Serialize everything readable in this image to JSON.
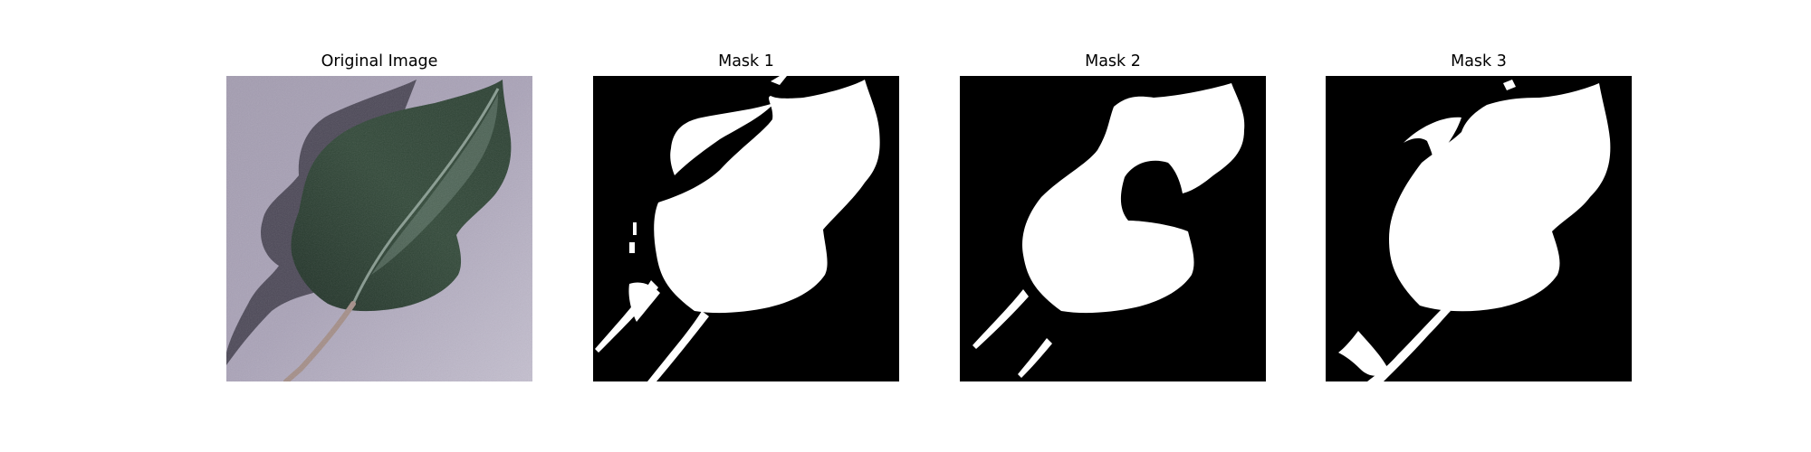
{
  "figure": {
    "panels": [
      {
        "id": "original",
        "title": "Original Image",
        "kind": "photo",
        "icon": "leaf-photo"
      },
      {
        "id": "mask1",
        "title": "Mask 1",
        "kind": "mask",
        "icon": "leaf-mask"
      },
      {
        "id": "mask2",
        "title": "Mask 2",
        "kind": "mask",
        "icon": "leaf-mask"
      },
      {
        "id": "mask3",
        "title": "Mask 3",
        "kind": "mask",
        "icon": "leaf-mask"
      }
    ],
    "colors": {
      "page_background": "#ffffff",
      "photo_background": "#aaa3b8",
      "leaf_dark": "#26392c",
      "leaf_light": "#7a9486",
      "leaf_shadow": "#3e3a48",
      "stem": "#a08c86",
      "mask_background": "#000000",
      "mask_foreground": "#ffffff"
    }
  }
}
